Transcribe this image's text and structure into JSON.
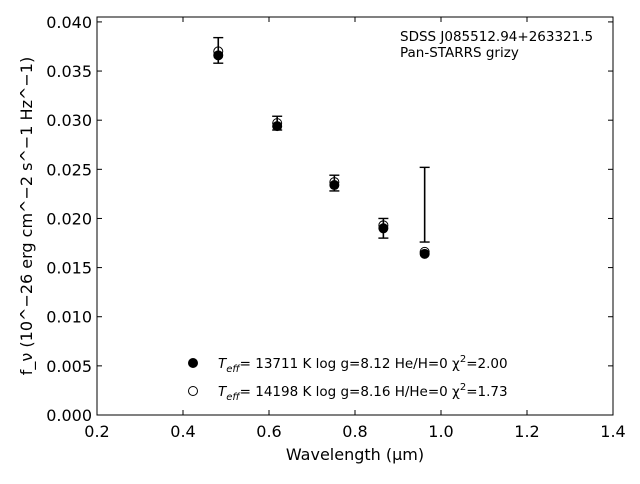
{
  "chart_data": {
    "type": "scatter",
    "xlabel": "Wavelength (μm)",
    "ylabel": "f_ν (10^−26 erg cm^−2 s^−1 Hz^−1)",
    "xlim": [
      0.2,
      1.4
    ],
    "ylim": [
      0.0,
      0.0405
    ],
    "x_ticks": [
      0.2,
      0.4,
      0.6,
      0.8,
      1.0,
      1.2,
      1.4
    ],
    "y_ticks": [
      0.0,
      0.005,
      0.01,
      0.015,
      0.02,
      0.025,
      0.03,
      0.035,
      0.04
    ],
    "x_tick_labels": [
      "0.2",
      "0.4",
      "0.6",
      "0.8",
      "1.0",
      "1.2",
      "1.4"
    ],
    "y_tick_labels": [
      "0.000",
      "0.005",
      "0.010",
      "0.015",
      "0.020",
      "0.025",
      "0.030",
      "0.035",
      "0.040"
    ],
    "grid": false,
    "legend_position": "bottom-center",
    "annotation": [
      "SDSS J085512.94+263321.5",
      "Pan-STARRS grizy"
    ],
    "observed": {
      "x": [
        0.482,
        0.619,
        0.752,
        0.866,
        0.962
      ],
      "y": [
        0.0371,
        0.0297,
        0.0236,
        0.019,
        0.0214
      ],
      "yerr": [
        0.0013,
        0.0007,
        0.0008,
        0.001,
        0.0038
      ]
    },
    "series": [
      {
        "label_parts": [
          "T",
          "eff",
          "= 13711 K  log g=8.12  He/H=0  χ",
          "2",
          "=2.00"
        ],
        "marker": "filled",
        "x": [
          0.482,
          0.619,
          0.752,
          0.866,
          0.962
        ],
        "y": [
          0.0366,
          0.0294,
          0.0234,
          0.019,
          0.0164
        ]
      },
      {
        "label_parts": [
          "T",
          "eff",
          "= 14198 K  log g=8.16  H/He=0  χ",
          "2",
          "=1.73"
        ],
        "marker": "open",
        "x": [
          0.482,
          0.619,
          0.752,
          0.866,
          0.962
        ],
        "y": [
          0.037,
          0.0297,
          0.0237,
          0.0193,
          0.0166
        ]
      }
    ]
  }
}
